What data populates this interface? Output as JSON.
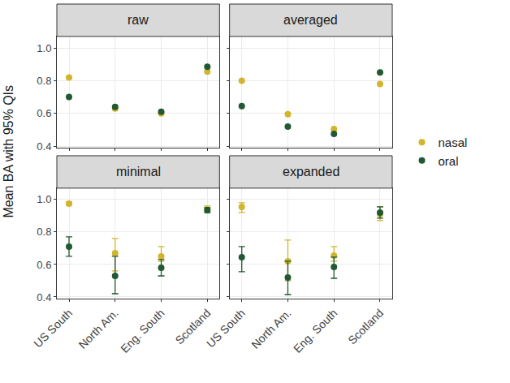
{
  "chart_data": {
    "type": "scatter",
    "ylabel": "Mean BA with 95% QIs",
    "ylim": [
      0.39,
      1.07
    ],
    "yticks": [
      0.4,
      0.6,
      0.8,
      {
        "value": 1,
        "label": "1.0"
      }
    ],
    "grid": true,
    "legend": "right",
    "marker": "circle",
    "panels": [
      {
        "title": "raw",
        "categories": [
          "US South",
          "North Am.",
          "Eng. South",
          "Scotland"
        ],
        "series": [
          {
            "name": "nasal",
            "color": "#d1b52c",
            "values": [
              0.82,
              0.63,
              0.6,
              0.855
            ]
          },
          {
            "name": "oral",
            "color": "#215a32",
            "values": [
              0.7,
              0.64,
              0.61,
              0.885
            ]
          }
        ]
      },
      {
        "title": "averaged",
        "categories": [
          "US South",
          "North Am.",
          "Eng. South",
          "Scotland"
        ],
        "series": [
          {
            "name": "nasal",
            "color": "#d1b52c",
            "values": [
              0.8,
              0.595,
              0.505,
              0.78
            ]
          },
          {
            "name": "oral",
            "color": "#215a32",
            "values": [
              0.645,
              0.52,
              0.475,
              0.85
            ]
          }
        ]
      },
      {
        "title": "minimal",
        "categories": [
          "US South",
          "North Am.",
          "Eng. South",
          "Scotland"
        ],
        "series": [
          {
            "name": "nasal",
            "color": "#d1b52c",
            "values": [
              0.975,
              0.67,
              0.65,
              0.94
            ],
            "lower": [
              0.965,
              0.56,
              0.62,
              0.92
            ],
            "upper": [
              0.985,
              0.76,
              0.71,
              0.96
            ]
          },
          {
            "name": "oral",
            "color": "#215a32",
            "values": [
              0.71,
              0.53,
              0.58,
              0.935
            ],
            "lower": [
              0.65,
              0.42,
              0.53,
              0.92
            ],
            "upper": [
              0.77,
              0.65,
              0.63,
              0.95
            ]
          }
        ]
      },
      {
        "title": "expanded",
        "categories": [
          "US South",
          "North Am.",
          "Eng. South",
          "Scotland"
        ],
        "series": [
          {
            "name": "nasal",
            "color": "#d1b52c",
            "values": [
              0.955,
              0.62,
              0.655,
              0.91
            ],
            "lower": [
              0.92,
              0.5,
              0.62,
              0.87
            ],
            "upper": [
              0.98,
              0.75,
              0.71,
              0.955
            ]
          },
          {
            "name": "oral",
            "color": "#215a32",
            "values": [
              0.645,
              0.52,
              0.585,
              0.92
            ],
            "lower": [
              0.555,
              0.415,
              0.515,
              0.885
            ],
            "upper": [
              0.71,
              0.62,
              0.645,
              0.955
            ]
          }
        ]
      }
    ]
  }
}
